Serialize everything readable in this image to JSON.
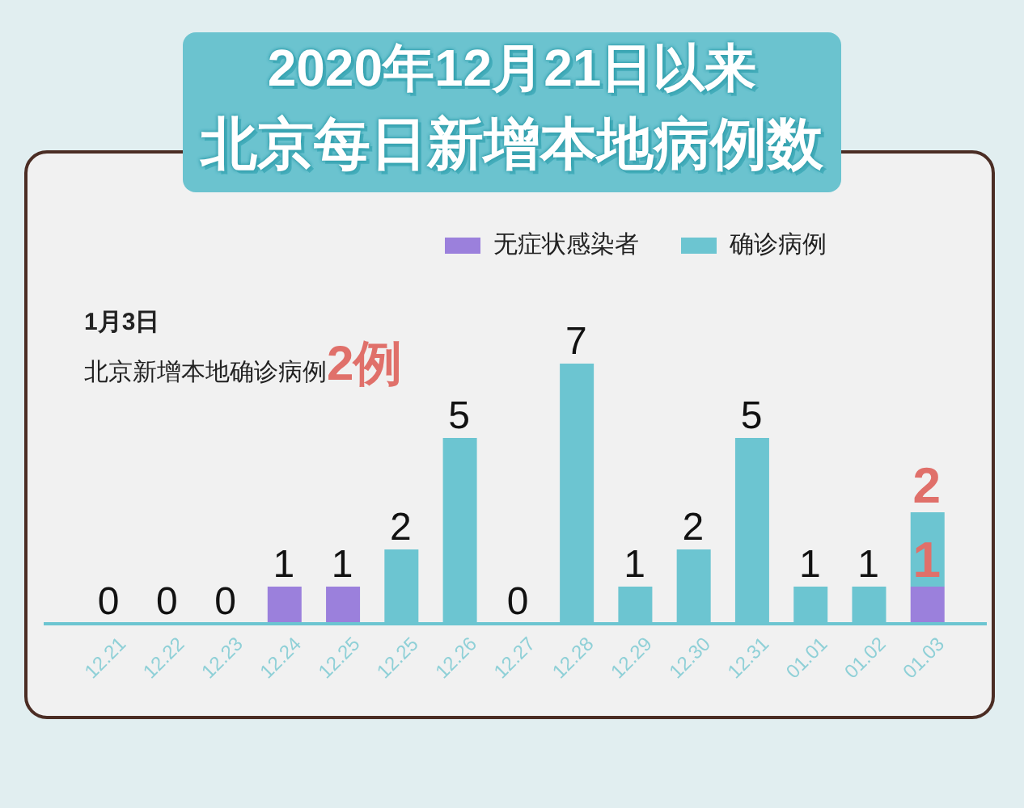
{
  "chart_data": {
    "type": "bar",
    "title": "北京每日新增本地病例数",
    "subtitle": "2020年12月21日以来",
    "categories": [
      "12.21",
      "12.22",
      "12.23",
      "12.24",
      "12.25",
      "12.25",
      "12.26",
      "12.27",
      "12.28",
      "12.29",
      "12.30",
      "12.31",
      "01.01",
      "01.02",
      "01.03"
    ],
    "stacked": true,
    "legend": "top right",
    "series": [
      {
        "name": "无症状感染者",
        "color": "#9b80dc",
        "values": [
          null,
          null,
          null,
          1,
          1,
          null,
          null,
          null,
          null,
          null,
          null,
          null,
          null,
          null,
          1
        ],
        "value_labels": [
          null,
          null,
          null,
          "1",
          "1",
          null,
          null,
          null,
          null,
          null,
          null,
          null,
          null,
          null,
          "1"
        ]
      },
      {
        "name": "确诊病例",
        "color": "#6cc5d1",
        "values": [
          0,
          0,
          0,
          null,
          null,
          2,
          5,
          0,
          7,
          1,
          2,
          5,
          1,
          1,
          2
        ],
        "value_labels": [
          "0",
          "0",
          "0",
          null,
          null,
          "2",
          "5",
          "0",
          "7",
          "1",
          "2",
          "5",
          "1",
          "1",
          "2"
        ]
      }
    ],
    "annotations": [
      "1月3日",
      "北京新增本地确诊病例2例"
    ]
  }
}
